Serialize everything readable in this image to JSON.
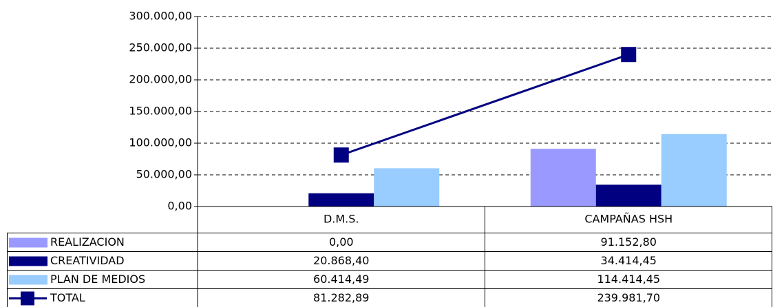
{
  "chart_data": {
    "type": "bar",
    "categories": [
      "D.M.S.",
      "CAMPAÑAS HSH"
    ],
    "series": [
      {
        "name": "REALIZACION",
        "color": "#9999ff",
        "values": [
          0,
          91152.8
        ],
        "value_labels": [
          "0,00",
          "91.152,80"
        ]
      },
      {
        "name": "CREATIVIDAD",
        "color": "#000080",
        "values": [
          20868.4,
          34414.45
        ],
        "value_labels": [
          "20.868,40",
          "34.414,45"
        ]
      },
      {
        "name": "PLAN DE MEDIOS",
        "color": "#99ccff",
        "values": [
          60414.49,
          114414.45
        ],
        "value_labels": [
          "60.414,49",
          "114.414,45"
        ]
      },
      {
        "name": "TOTAL",
        "color": "#000080",
        "type": "line",
        "values": [
          81282.89,
          239981.7
        ],
        "value_labels": [
          "81.282,89",
          "239.981,70"
        ]
      }
    ],
    "ylim": [
      0,
      300000
    ],
    "yticks": [
      {
        "value": 0,
        "label": "0,00"
      },
      {
        "value": 50000,
        "label": "50.000,00"
      },
      {
        "value": 100000,
        "label": "100.000,00"
      },
      {
        "value": 150000,
        "label": "150.000,00"
      },
      {
        "value": 200000,
        "label": "200.000,00"
      },
      {
        "value": 250000,
        "label": "250.000,00"
      },
      {
        "value": 300000,
        "label": "300.000,00"
      }
    ],
    "grid": true
  }
}
